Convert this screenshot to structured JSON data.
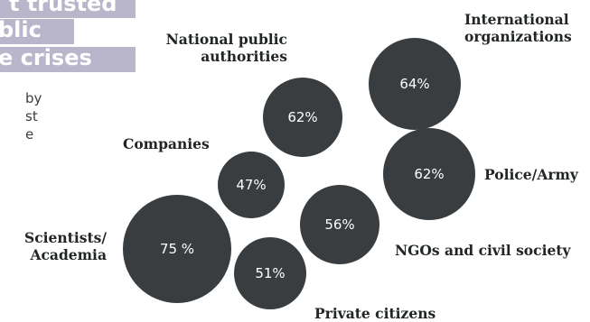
{
  "header": {
    "title_lines": [
      "t trusted",
      "blic",
      "e crises"
    ],
    "body_lines": [
      "by",
      "st",
      "e"
    ]
  },
  "chart_data": {
    "type": "bubble",
    "colors": {
      "bubble": "#393d3f",
      "title_bg": "#b9b6cb"
    },
    "items": [
      {
        "label": "Scientists/\nAcademia",
        "value": 75,
        "value_label": "75 %"
      },
      {
        "label": "International\norganizations",
        "value": 64,
        "value_label": "64%"
      },
      {
        "label": "National public\nauthorities",
        "value": 62,
        "value_label": "62%"
      },
      {
        "label": "Police/Army",
        "value": 62,
        "value_label": "62%"
      },
      {
        "label": "NGOs and civil society",
        "value": 56,
        "value_label": "56%"
      },
      {
        "label": "Private citizens",
        "value": 51,
        "value_label": "51%"
      },
      {
        "label": "Companies",
        "value": 47,
        "value_label": "47%"
      }
    ]
  }
}
